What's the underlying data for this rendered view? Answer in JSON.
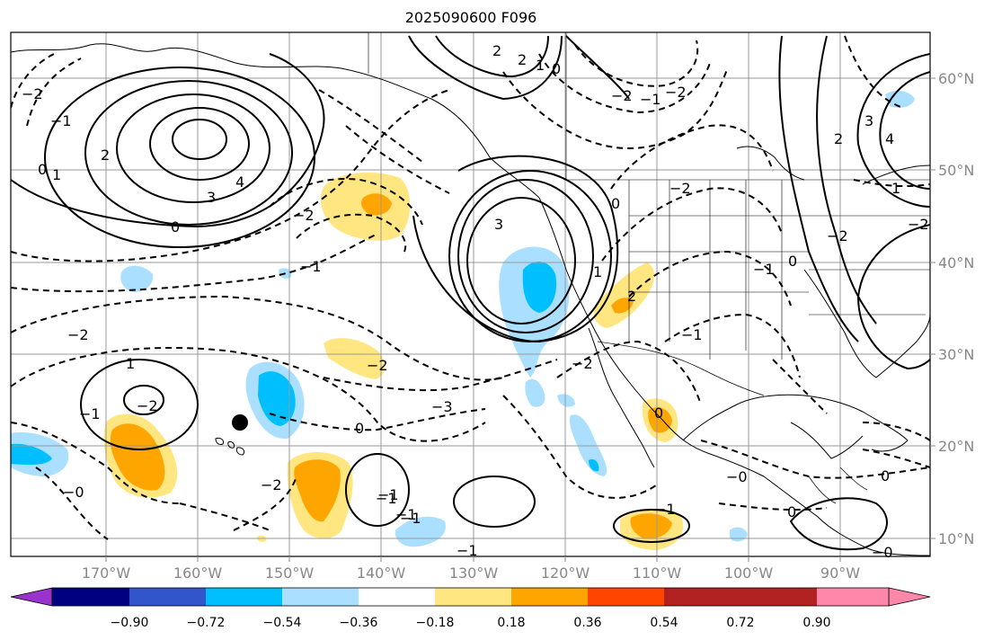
{
  "title": "2025090600 F096",
  "lon_labels": [
    "170°W",
    "160°W",
    "150°W",
    "140°W",
    "130°W",
    "120°W",
    "110°W",
    "100°W",
    "90°W"
  ],
  "lat_labels": [
    "60°N",
    "50°N",
    "40°N",
    "30°N",
    "20°N",
    "10°N"
  ],
  "colorbar": {
    "colors": [
      "#9933cc",
      "#000080",
      "#3355cc",
      "#00bfff",
      "#aadfff",
      "#ffffff",
      "#ffe680",
      "#ffa500",
      "#ff4500",
      "#b22222",
      "#ff88aa"
    ],
    "tick_labels": [
      "−0.90",
      "−0.72",
      "−0.54",
      "−0.36",
      "−0.18",
      "0.18",
      "0.36",
      "0.54",
      "0.72",
      "0.90"
    ]
  },
  "contour_labels": [
    "2",
    "2",
    "1",
    "0",
    "0",
    "4",
    "3",
    "2",
    "1",
    "0",
    "−2",
    "−1",
    "−2",
    "−1",
    "−2",
    "−2",
    "−3",
    "−2",
    "−2",
    "−1",
    "−2",
    "−1",
    "−2",
    "−2",
    "−1",
    "−1",
    "−0",
    "−1",
    "−1",
    "3",
    "1",
    "0",
    "4",
    "2",
    "3",
    "1",
    "−1",
    "0",
    "−2",
    "0",
    "−1",
    "−2",
    "1",
    "2",
    "0",
    "−0",
    "0",
    "−0",
    "−1",
    "−1",
    "−2",
    "0"
  ],
  "marker": {
    "label": "storm-center"
  }
}
